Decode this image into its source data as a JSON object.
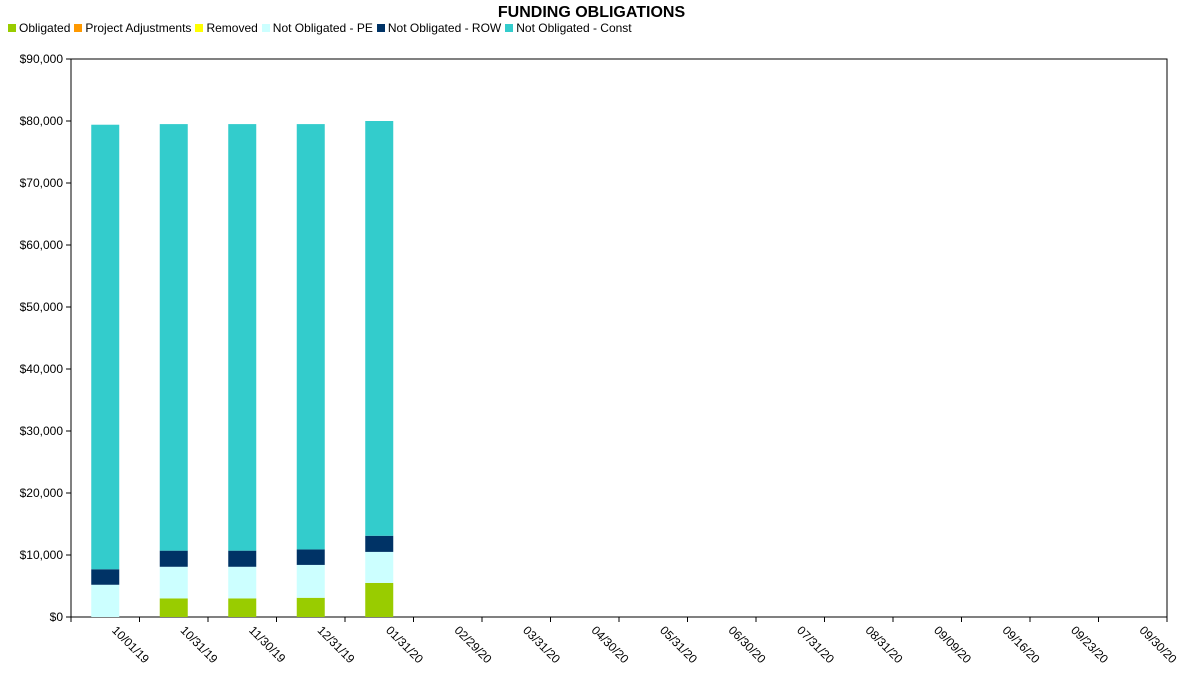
{
  "chart_data": {
    "type": "bar",
    "stacked": true,
    "title": "FUNDING OBLIGATIONS",
    "xlabel": "",
    "ylabel": "",
    "ylim": [
      0,
      90000
    ],
    "yticks": [
      "$0",
      "$10,000",
      "$20,000",
      "$30,000",
      "$40,000",
      "$50,000",
      "$60,000",
      "$70,000",
      "$80,000",
      "$90,000"
    ],
    "grid": false,
    "legend_position": "top-left",
    "categories": [
      "10/01/19",
      "10/31/19",
      "11/30/19",
      "12/31/19",
      "01/31/20",
      "02/29/20",
      "03/31/20",
      "04/30/20",
      "05/31/20",
      "06/30/20",
      "07/31/20",
      "08/31/20",
      "09/09/20",
      "09/16/20",
      "09/23/20",
      "09/30/20"
    ],
    "series": [
      {
        "name": "Obligated",
        "color": "#99cc00",
        "values": [
          0,
          3000,
          3000,
          3100,
          5500,
          0,
          0,
          0,
          0,
          0,
          0,
          0,
          0,
          0,
          0,
          0
        ]
      },
      {
        "name": "Project Adjustments",
        "color": "#ff9900",
        "values": [
          0,
          0,
          0,
          0,
          0,
          0,
          0,
          0,
          0,
          0,
          0,
          0,
          0,
          0,
          0,
          0
        ]
      },
      {
        "name": "Removed",
        "color": "#ffff00",
        "values": [
          0,
          0,
          0,
          0,
          0,
          0,
          0,
          0,
          0,
          0,
          0,
          0,
          0,
          0,
          0,
          0
        ]
      },
      {
        "name": "Not Obligated - PE",
        "color": "#ccffff",
        "values": [
          5200,
          5100,
          5100,
          5300,
          5000,
          0,
          0,
          0,
          0,
          0,
          0,
          0,
          0,
          0,
          0,
          0
        ]
      },
      {
        "name": "Not Obligated - ROW",
        "color": "#003366",
        "values": [
          2500,
          2600,
          2600,
          2500,
          2600,
          0,
          0,
          0,
          0,
          0,
          0,
          0,
          0,
          0,
          0,
          0
        ]
      },
      {
        "name": "Not Obligated - Const",
        "color": "#33cccc",
        "values": [
          71700,
          68800,
          68800,
          68600,
          66900,
          0,
          0,
          0,
          0,
          0,
          0,
          0,
          0,
          0,
          0,
          0
        ]
      }
    ]
  }
}
